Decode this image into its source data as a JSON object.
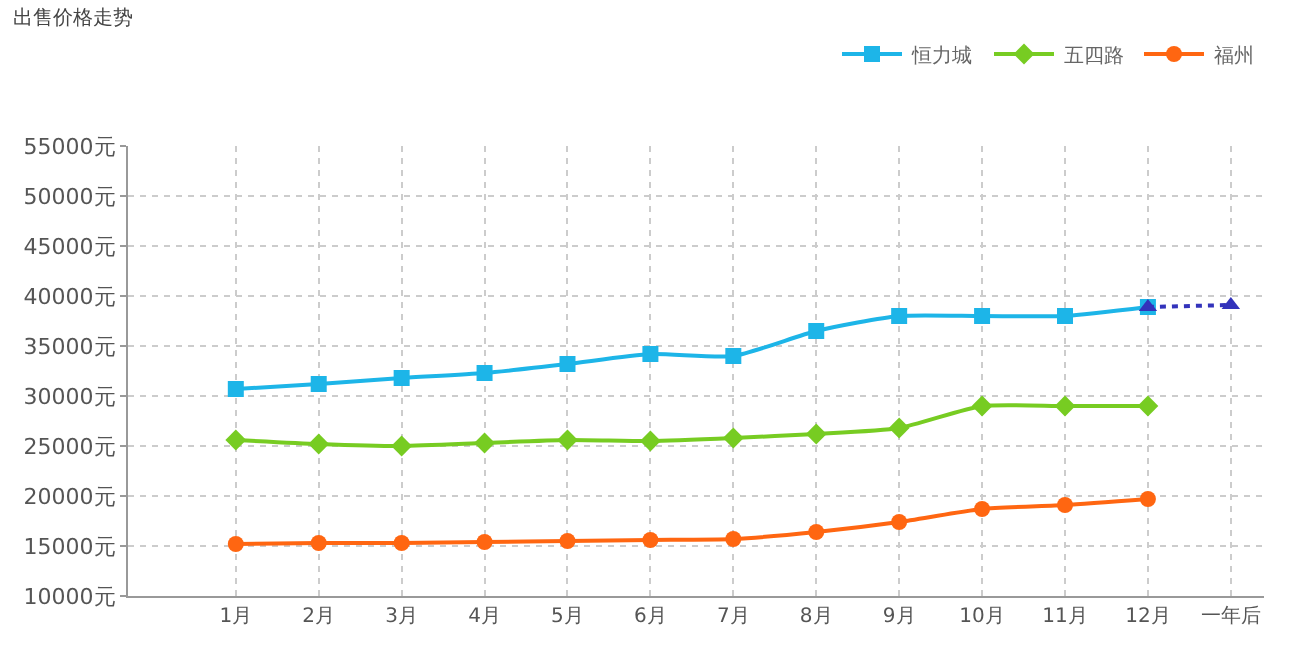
{
  "chart_data": {
    "type": "line",
    "title": "出售价格走势",
    "categories": [
      "1月",
      "2月",
      "3月",
      "4月",
      "5月",
      "6月",
      "7月",
      "8月",
      "9月",
      "10月",
      "11月",
      "12月",
      "一年后"
    ],
    "series": [
      {
        "name": "恒力城",
        "color": "#1db5e8",
        "marker": "square",
        "line_style": "solid",
        "values": [
          30700,
          31200,
          31800,
          32300,
          33200,
          34200,
          34000,
          36500,
          38000,
          38000,
          38000,
          38900,
          null
        ]
      },
      {
        "name": "五四路",
        "color": "#77cc22",
        "marker": "diamond",
        "line_style": "solid",
        "values": [
          25600,
          25200,
          25000,
          25300,
          25600,
          25500,
          25800,
          26200,
          26800,
          29000,
          29000,
          29000,
          null
        ]
      },
      {
        "name": "福州",
        "color": "#ff6611",
        "marker": "circle",
        "line_style": "solid",
        "values": [
          15200,
          15300,
          15300,
          15400,
          15500,
          15600,
          15700,
          16400,
          17400,
          18700,
          19100,
          19700,
          null
        ]
      },
      {
        "color": "#3333bb",
        "marker": "triangle",
        "line_style": "dotted",
        "values": [
          null,
          null,
          null,
          null,
          null,
          null,
          null,
          null,
          null,
          null,
          null,
          38900,
          39100
        ]
      }
    ],
    "ylim": [
      10000,
      55000
    ],
    "yticks": [
      {
        "value": 10000,
        "label": "10000元"
      },
      {
        "value": 15000,
        "label": "15000元"
      },
      {
        "value": 20000,
        "label": "20000元"
      },
      {
        "value": 25000,
        "label": "25000元"
      },
      {
        "value": 30000,
        "label": "30000元"
      },
      {
        "value": 35000,
        "label": "35000元"
      },
      {
        "value": 40000,
        "label": "40000元"
      },
      {
        "value": 45000,
        "label": "45000元"
      },
      {
        "value": 50000,
        "label": "50000元"
      },
      {
        "value": 55000,
        "label": "55000元"
      }
    ],
    "grid": true,
    "legend": "top right"
  }
}
